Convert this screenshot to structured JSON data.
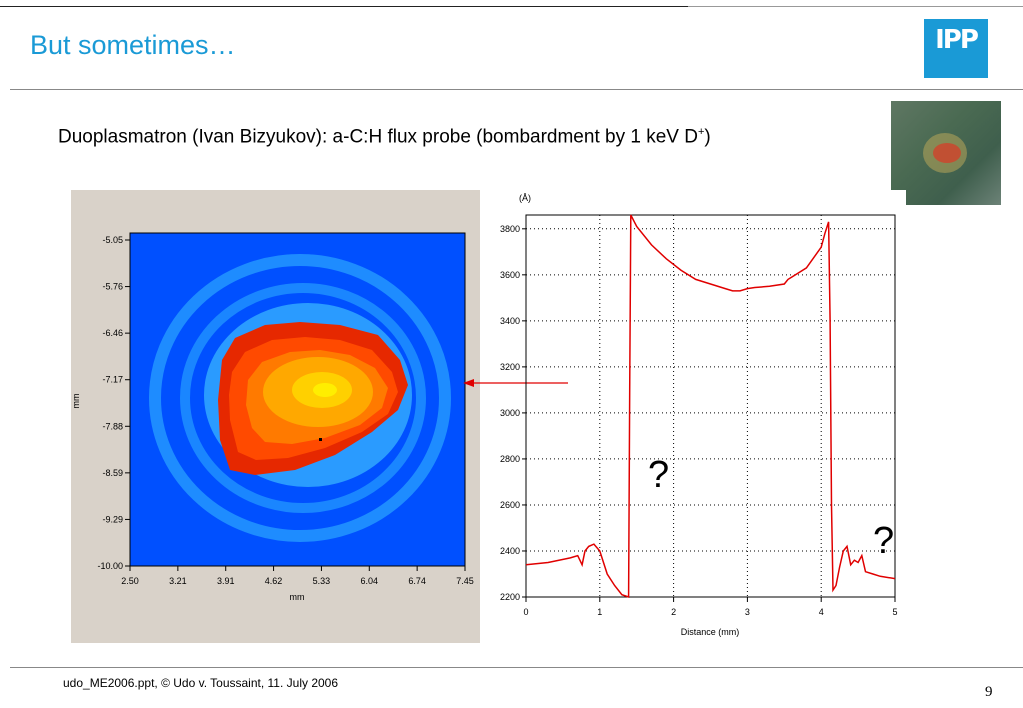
{
  "slide": {
    "title": "But sometimes…",
    "logo_text": "IPP",
    "subtitle_main": "Duoplasmatron (Ivan Bizyukov): a-C:H flux probe (bombardment by 1 keV D",
    "subtitle_sup": "+",
    "subtitle_end": ")",
    "footer": "udo_ME2006.ppt, © Udo v. Toussaint, 11. July 2006",
    "page_number": "9"
  },
  "colors": {
    "title": "#1a9ad6",
    "map_background": "#0050ff",
    "profile_line": "#e00000",
    "arrow": "#e00000"
  },
  "chart_data": [
    {
      "type": "heatmap",
      "title": "",
      "xlabel": "mm",
      "ylabel": "mm",
      "x_ticks": [
        "2.50",
        "3.21",
        "3.91",
        "4.62",
        "5.33",
        "6.04",
        "6.74",
        "7.45"
      ],
      "y_ticks": [
        "-5.05",
        "-5.76",
        "-6.46",
        "-7.17",
        "-7.88",
        "-8.59",
        "-9.29",
        "-10.00"
      ],
      "xlim": [
        2.5,
        7.45
      ],
      "ylim": [
        -10.0,
        -5.05
      ],
      "colorscale": [
        "#0050ff",
        "#0a78ff",
        "#2196ff",
        "#e62800",
        "#ff4a00",
        "#ff7a00",
        "#ffa800",
        "#ffd000",
        "#ffee00"
      ]
    },
    {
      "type": "line",
      "title": "",
      "unit_label": "(Å)",
      "xlabel": "Distance (mm)",
      "ylabel": "",
      "xlim": [
        0,
        5
      ],
      "ylim": [
        2200,
        3860
      ],
      "x_ticks": [
        "0",
        "1",
        "2",
        "3",
        "4",
        "5"
      ],
      "y_ticks": [
        "2200",
        "2400",
        "2600",
        "2800",
        "3000",
        "3200",
        "3400",
        "3600",
        "3800"
      ],
      "grid": true,
      "annotations": [
        "?",
        "?"
      ],
      "series": [
        {
          "x": [
            0,
            0.3,
            0.6,
            0.7,
            0.76,
            0.8,
            0.85,
            0.92,
            1.0,
            1.1,
            1.2,
            1.3,
            1.39,
            1.405,
            1.42,
            1.5,
            1.7,
            1.9,
            2.1,
            2.3,
            2.5,
            2.7,
            2.8,
            2.9,
            3.0,
            3.1,
            3.3,
            3.5,
            3.55,
            3.6,
            3.8,
            4.0,
            4.05,
            4.1,
            4.12,
            4.14,
            4.16,
            4.2,
            4.25,
            4.3,
            4.35,
            4.4,
            4.45,
            4.5,
            4.55,
            4.6,
            4.7,
            4.8,
            5.0
          ],
          "y": [
            2340,
            2350,
            2370,
            2380,
            2340,
            2400,
            2420,
            2430,
            2400,
            2300,
            2250,
            2210,
            2200,
            3100,
            3860,
            3810,
            3730,
            3670,
            3620,
            3580,
            3560,
            3540,
            3530,
            3530,
            3540,
            3545,
            3550,
            3560,
            3580,
            3590,
            3630,
            3720,
            3780,
            3830,
            3400,
            2600,
            2230,
            2250,
            2330,
            2400,
            2420,
            2340,
            2360,
            2350,
            2380,
            2310,
            2300,
            2290,
            2280
          ]
        }
      ]
    }
  ]
}
